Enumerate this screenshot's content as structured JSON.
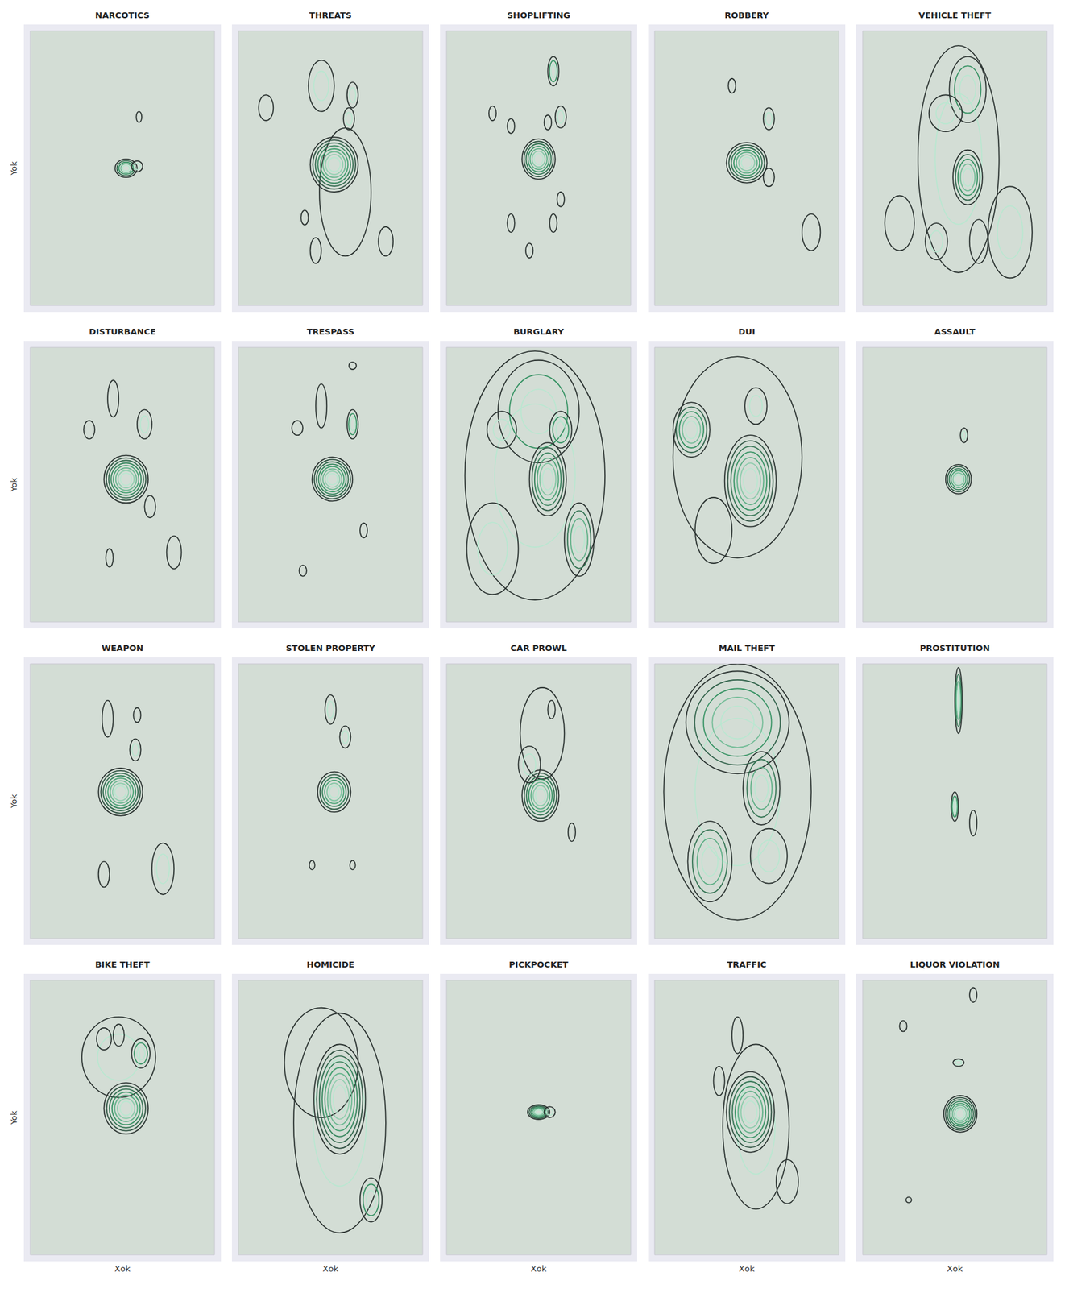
{
  "chart_data": [
    {
      "type": "kde_contour",
      "title": "NARCOTICS",
      "ylabel": "Yok",
      "xlim": [
        0,
        100
      ],
      "ylim": [
        0,
        150
      ],
      "tick_labels": false,
      "grid": false,
      "blobs": [
        {
          "x": 52,
          "y": 75,
          "rx": 6,
          "ry": 5,
          "levels": 5
        },
        {
          "x": 58,
          "y": 76,
          "rx": 3,
          "ry": 3,
          "levels": 2
        },
        {
          "x": 59,
          "y": 103,
          "rx": 1.5,
          "ry": 3,
          "levels": 1
        }
      ]
    },
    {
      "type": "kde_contour",
      "title": "THREATS",
      "xlim": [
        0,
        100
      ],
      "ylim": [
        0,
        150
      ],
      "tick_labels": false,
      "grid": false,
      "blobs": [
        {
          "x": 58,
          "y": 62,
          "rx": 14,
          "ry": 35,
          "levels": 1
        },
        {
          "x": 52,
          "y": 77,
          "rx": 13,
          "ry": 15,
          "levels": 8
        },
        {
          "x": 45,
          "y": 120,
          "rx": 7,
          "ry": 14,
          "levels": 2
        },
        {
          "x": 62,
          "y": 115,
          "rx": 3,
          "ry": 7,
          "levels": 2
        },
        {
          "x": 60,
          "y": 102,
          "rx": 3,
          "ry": 6,
          "levels": 2
        },
        {
          "x": 15,
          "y": 108,
          "rx": 4,
          "ry": 7,
          "levels": 1
        },
        {
          "x": 36,
          "y": 48,
          "rx": 2,
          "ry": 4,
          "levels": 1
        },
        {
          "x": 42,
          "y": 30,
          "rx": 3,
          "ry": 7,
          "levels": 1
        },
        {
          "x": 80,
          "y": 35,
          "rx": 4,
          "ry": 8,
          "levels": 1
        }
      ]
    },
    {
      "type": "kde_contour",
      "title": "SHOPLIFTING",
      "xlim": [
        0,
        100
      ],
      "ylim": [
        0,
        150
      ],
      "tick_labels": false,
      "grid": false,
      "blobs": [
        {
          "x": 50,
          "y": 80,
          "rx": 9,
          "ry": 11,
          "levels": 7
        },
        {
          "x": 58,
          "y": 128,
          "rx": 3,
          "ry": 8,
          "levels": 3
        },
        {
          "x": 55,
          "y": 100,
          "rx": 2,
          "ry": 4,
          "levels": 1
        },
        {
          "x": 62,
          "y": 103,
          "rx": 3,
          "ry": 6,
          "levels": 2
        },
        {
          "x": 25,
          "y": 105,
          "rx": 2,
          "ry": 4,
          "levels": 1
        },
        {
          "x": 35,
          "y": 98,
          "rx": 2,
          "ry": 4,
          "levels": 1
        },
        {
          "x": 35,
          "y": 45,
          "rx": 2,
          "ry": 5,
          "levels": 1
        },
        {
          "x": 45,
          "y": 30,
          "rx": 2,
          "ry": 4,
          "levels": 1
        },
        {
          "x": 58,
          "y": 45,
          "rx": 2,
          "ry": 5,
          "levels": 1
        },
        {
          "x": 62,
          "y": 58,
          "rx": 2,
          "ry": 4,
          "levels": 1
        }
      ]
    },
    {
      "type": "kde_contour",
      "title": "ROBBERY",
      "xlim": [
        0,
        100
      ],
      "ylim": [
        0,
        150
      ],
      "tick_labels": false,
      "grid": false,
      "blobs": [
        {
          "x": 50,
          "y": 78,
          "rx": 11,
          "ry": 11,
          "levels": 7
        },
        {
          "x": 42,
          "y": 120,
          "rx": 2,
          "ry": 4,
          "levels": 1
        },
        {
          "x": 62,
          "y": 102,
          "rx": 3,
          "ry": 6,
          "levels": 2
        },
        {
          "x": 62,
          "y": 70,
          "rx": 3,
          "ry": 5,
          "levels": 1
        },
        {
          "x": 85,
          "y": 40,
          "rx": 5,
          "ry": 10,
          "levels": 1
        }
      ]
    },
    {
      "type": "kde_contour",
      "title": "VEHICLE THEFT",
      "xlim": [
        0,
        100
      ],
      "ylim": [
        0,
        150
      ],
      "tick_labels": false,
      "grid": false,
      "blobs": [
        {
          "x": 52,
          "y": 80,
          "rx": 22,
          "ry": 62,
          "levels": 2
        },
        {
          "x": 57,
          "y": 118,
          "rx": 10,
          "ry": 18,
          "levels": 3
        },
        {
          "x": 57,
          "y": 70,
          "rx": 8,
          "ry": 15,
          "levels": 5
        },
        {
          "x": 45,
          "y": 105,
          "rx": 9,
          "ry": 10,
          "levels": 2
        },
        {
          "x": 80,
          "y": 40,
          "rx": 12,
          "ry": 25,
          "levels": 2
        },
        {
          "x": 20,
          "y": 45,
          "rx": 8,
          "ry": 15,
          "levels": 1
        },
        {
          "x": 40,
          "y": 35,
          "rx": 6,
          "ry": 10,
          "levels": 2
        },
        {
          "x": 63,
          "y": 35,
          "rx": 5,
          "ry": 12,
          "levels": 1
        }
      ]
    },
    {
      "type": "kde_contour",
      "title": "DISTURBANCE",
      "ylabel": "Yok",
      "xlim": [
        0,
        100
      ],
      "ylim": [
        0,
        150
      ],
      "tick_labels": false,
      "grid": false,
      "blobs": [
        {
          "x": 52,
          "y": 78,
          "rx": 12,
          "ry": 13,
          "levels": 8
        },
        {
          "x": 45,
          "y": 122,
          "rx": 3,
          "ry": 10,
          "levels": 1
        },
        {
          "x": 62,
          "y": 108,
          "rx": 4,
          "ry": 8,
          "levels": 2
        },
        {
          "x": 32,
          "y": 105,
          "rx": 3,
          "ry": 5,
          "levels": 1
        },
        {
          "x": 65,
          "y": 63,
          "rx": 3,
          "ry": 6,
          "levels": 1
        },
        {
          "x": 43,
          "y": 35,
          "rx": 2,
          "ry": 5,
          "levels": 1
        },
        {
          "x": 78,
          "y": 38,
          "rx": 4,
          "ry": 9,
          "levels": 1
        }
      ]
    },
    {
      "type": "kde_contour",
      "title": "TRESPASS",
      "xlim": [
        0,
        100
      ],
      "ylim": [
        0,
        150
      ],
      "tick_labels": false,
      "grid": false,
      "blobs": [
        {
          "x": 51,
          "y": 78,
          "rx": 11,
          "ry": 12,
          "levels": 8
        },
        {
          "x": 45,
          "y": 118,
          "rx": 3,
          "ry": 12,
          "levels": 1
        },
        {
          "x": 62,
          "y": 108,
          "rx": 3,
          "ry": 8,
          "levels": 3
        },
        {
          "x": 32,
          "y": 106,
          "rx": 3,
          "ry": 4,
          "levels": 1
        },
        {
          "x": 68,
          "y": 50,
          "rx": 2,
          "ry": 4,
          "levels": 1
        },
        {
          "x": 35,
          "y": 28,
          "rx": 2,
          "ry": 3,
          "levels": 1
        },
        {
          "x": 62,
          "y": 140,
          "rx": 2,
          "ry": 2,
          "levels": 1
        }
      ]
    },
    {
      "type": "kde_contour",
      "title": "BURGLARY",
      "xlim": [
        0,
        100
      ],
      "ylim": [
        0,
        150
      ],
      "tick_labels": false,
      "grid": false,
      "blobs": [
        {
          "x": 48,
          "y": 80,
          "rx": 38,
          "ry": 68,
          "levels": 2
        },
        {
          "x": 50,
          "y": 115,
          "rx": 22,
          "ry": 28,
          "levels": 3
        },
        {
          "x": 55,
          "y": 78,
          "rx": 10,
          "ry": 20,
          "levels": 6
        },
        {
          "x": 25,
          "y": 40,
          "rx": 14,
          "ry": 25,
          "levels": 2
        },
        {
          "x": 72,
          "y": 45,
          "rx": 8,
          "ry": 20,
          "levels": 4
        },
        {
          "x": 62,
          "y": 105,
          "rx": 6,
          "ry": 10,
          "levels": 3
        },
        {
          "x": 30,
          "y": 105,
          "rx": 8,
          "ry": 10,
          "levels": 2
        }
      ]
    },
    {
      "type": "kde_contour",
      "title": "DUI",
      "xlim": [
        0,
        100
      ],
      "ylim": [
        0,
        150
      ],
      "tick_labels": false,
      "grid": false,
      "blobs": [
        {
          "x": 45,
          "y": 90,
          "rx": 35,
          "ry": 55,
          "levels": 1
        },
        {
          "x": 20,
          "y": 105,
          "rx": 10,
          "ry": 15,
          "levels": 5
        },
        {
          "x": 52,
          "y": 77,
          "rx": 14,
          "ry": 25,
          "levels": 7
        },
        {
          "x": 32,
          "y": 50,
          "rx": 10,
          "ry": 18,
          "levels": 1
        },
        {
          "x": 55,
          "y": 118,
          "rx": 6,
          "ry": 10,
          "levels": 2
        }
      ]
    },
    {
      "type": "kde_contour",
      "title": "ASSAULT",
      "xlim": [
        0,
        100
      ],
      "ylim": [
        0,
        150
      ],
      "tick_labels": false,
      "grid": false,
      "blobs": [
        {
          "x": 52,
          "y": 78,
          "rx": 7,
          "ry": 8,
          "levels": 6
        },
        {
          "x": 55,
          "y": 102,
          "rx": 2,
          "ry": 4,
          "levels": 2
        }
      ]
    },
    {
      "type": "kde_contour",
      "title": "WEAPON",
      "ylabel": "Yok",
      "xlim": [
        0,
        100
      ],
      "ylim": [
        0,
        150
      ],
      "tick_labels": false,
      "grid": false,
      "blobs": [
        {
          "x": 49,
          "y": 80,
          "rx": 12,
          "ry": 13,
          "levels": 8
        },
        {
          "x": 42,
          "y": 120,
          "rx": 3,
          "ry": 10,
          "levels": 1
        },
        {
          "x": 58,
          "y": 122,
          "rx": 2,
          "ry": 4,
          "levels": 1
        },
        {
          "x": 57,
          "y": 103,
          "rx": 3,
          "ry": 6,
          "levels": 2
        },
        {
          "x": 72,
          "y": 38,
          "rx": 6,
          "ry": 14,
          "levels": 2
        },
        {
          "x": 40,
          "y": 35,
          "rx": 3,
          "ry": 7,
          "levels": 1
        }
      ]
    },
    {
      "type": "kde_contour",
      "title": "STOLEN PROPERTY",
      "xlim": [
        0,
        100
      ],
      "ylim": [
        0,
        150
      ],
      "tick_labels": false,
      "grid": false,
      "blobs": [
        {
          "x": 52,
          "y": 80,
          "rx": 9,
          "ry": 11,
          "levels": 6
        },
        {
          "x": 50,
          "y": 125,
          "rx": 3,
          "ry": 8,
          "levels": 2
        },
        {
          "x": 58,
          "y": 110,
          "rx": 3,
          "ry": 6,
          "levels": 2
        },
        {
          "x": 40,
          "y": 40,
          "rx": 1.5,
          "ry": 2.5,
          "levels": 1
        },
        {
          "x": 62,
          "y": 40,
          "rx": 1.5,
          "ry": 2.5,
          "levels": 1
        }
      ]
    },
    {
      "type": "kde_contour",
      "title": "CAR PROWL",
      "xlim": [
        0,
        100
      ],
      "ylim": [
        0,
        150
      ],
      "tick_labels": false,
      "grid": false,
      "blobs": [
        {
          "x": 52,
          "y": 112,
          "rx": 12,
          "ry": 25,
          "levels": 1
        },
        {
          "x": 51,
          "y": 78,
          "rx": 10,
          "ry": 14,
          "levels": 7
        },
        {
          "x": 45,
          "y": 95,
          "rx": 6,
          "ry": 10,
          "levels": 2
        },
        {
          "x": 57,
          "y": 125,
          "rx": 2,
          "ry": 5,
          "levels": 1
        },
        {
          "x": 68,
          "y": 58,
          "rx": 2,
          "ry": 5,
          "levels": 1
        }
      ]
    },
    {
      "type": "kde_contour",
      "title": "MAIL THEFT",
      "xlim": [
        0,
        100
      ],
      "ylim": [
        0,
        150
      ],
      "tick_labels": false,
      "grid": false,
      "blobs": [
        {
          "x": 45,
          "y": 80,
          "rx": 40,
          "ry": 70,
          "levels": 2
        },
        {
          "x": 45,
          "y": 118,
          "rx": 28,
          "ry": 28,
          "levels": 5
        },
        {
          "x": 58,
          "y": 82,
          "rx": 10,
          "ry": 20,
          "levels": 4
        },
        {
          "x": 30,
          "y": 42,
          "rx": 12,
          "ry": 22,
          "levels": 4
        },
        {
          "x": 62,
          "y": 45,
          "rx": 10,
          "ry": 15,
          "levels": 2
        }
      ]
    },
    {
      "type": "kde_contour",
      "title": "PROSTITUTION",
      "xlim": [
        0,
        100
      ],
      "ylim": [
        0,
        150
      ],
      "tick_labels": false,
      "grid": false,
      "blobs": [
        {
          "x": 52,
          "y": 130,
          "rx": 2,
          "ry": 18,
          "levels": 4
        },
        {
          "x": 50,
          "y": 72,
          "rx": 2,
          "ry": 8,
          "levels": 3
        },
        {
          "x": 60,
          "y": 63,
          "rx": 2,
          "ry": 7,
          "levels": 1
        }
      ]
    },
    {
      "type": "kde_contour",
      "title": "BIKE THEFT",
      "ylabel": "Yok",
      "xlabel": "Xok",
      "xlim": [
        0,
        100
      ],
      "ylim": [
        0,
        150
      ],
      "tick_labels": false,
      "grid": false,
      "blobs": [
        {
          "x": 48,
          "y": 108,
          "rx": 20,
          "ry": 22,
          "levels": 2
        },
        {
          "x": 52,
          "y": 80,
          "rx": 12,
          "ry": 14,
          "levels": 7
        },
        {
          "x": 60,
          "y": 110,
          "rx": 5,
          "ry": 8,
          "levels": 3
        },
        {
          "x": 40,
          "y": 118,
          "rx": 4,
          "ry": 6,
          "levels": 1
        },
        {
          "x": 48,
          "y": 120,
          "rx": 3,
          "ry": 6,
          "levels": 1
        }
      ]
    },
    {
      "type": "kde_contour",
      "title": "HOMICIDE",
      "xlabel": "Xok",
      "xlim": [
        0,
        100
      ],
      "ylim": [
        0,
        150
      ],
      "tick_labels": false,
      "grid": false,
      "blobs": [
        {
          "x": 55,
          "y": 72,
          "rx": 25,
          "ry": 60,
          "levels": 2
        },
        {
          "x": 45,
          "y": 105,
          "rx": 20,
          "ry": 30,
          "levels": 1
        },
        {
          "x": 55,
          "y": 85,
          "rx": 14,
          "ry": 30,
          "levels": 8
        },
        {
          "x": 72,
          "y": 30,
          "rx": 6,
          "ry": 12,
          "levels": 3
        }
      ]
    },
    {
      "type": "kde_contour",
      "title": "PICKPOCKET",
      "xlabel": "Xok",
      "xlim": [
        0,
        100
      ],
      "ylim": [
        0,
        150
      ],
      "tick_labels": false,
      "grid": false,
      "blobs": [
        {
          "x": 50,
          "y": 78,
          "rx": 6,
          "ry": 4,
          "levels": 6
        },
        {
          "x": 56,
          "y": 78,
          "rx": 3,
          "ry": 3,
          "levels": 2
        }
      ]
    },
    {
      "type": "kde_contour",
      "title": "TRAFFIC",
      "xlabel": "Xok",
      "xlim": [
        0,
        100
      ],
      "ylim": [
        0,
        150
      ],
      "tick_labels": false,
      "grid": false,
      "blobs": [
        {
          "x": 55,
          "y": 70,
          "rx": 18,
          "ry": 45,
          "levels": 2
        },
        {
          "x": 52,
          "y": 78,
          "rx": 13,
          "ry": 22,
          "levels": 7
        },
        {
          "x": 45,
          "y": 120,
          "rx": 3,
          "ry": 10,
          "levels": 1
        },
        {
          "x": 35,
          "y": 95,
          "rx": 3,
          "ry": 8,
          "levels": 1
        },
        {
          "x": 72,
          "y": 40,
          "rx": 6,
          "ry": 12,
          "levels": 1
        }
      ]
    },
    {
      "type": "kde_contour",
      "title": "LIQUOR VIOLATION",
      "xlabel": "Xok",
      "xlim": [
        0,
        100
      ],
      "ylim": [
        0,
        150
      ],
      "tick_labels": false,
      "grid": false,
      "blobs": [
        {
          "x": 53,
          "y": 77,
          "rx": 9,
          "ry": 10,
          "levels": 8
        },
        {
          "x": 60,
          "y": 142,
          "rx": 2,
          "ry": 4,
          "levels": 1
        },
        {
          "x": 52,
          "y": 105,
          "rx": 3,
          "ry": 2,
          "levels": 2
        },
        {
          "x": 22,
          "y": 125,
          "rx": 2,
          "ry": 3,
          "levels": 1
        },
        {
          "x": 25,
          "y": 30,
          "rx": 1.5,
          "ry": 1.5,
          "levels": 1
        }
      ]
    }
  ]
}
